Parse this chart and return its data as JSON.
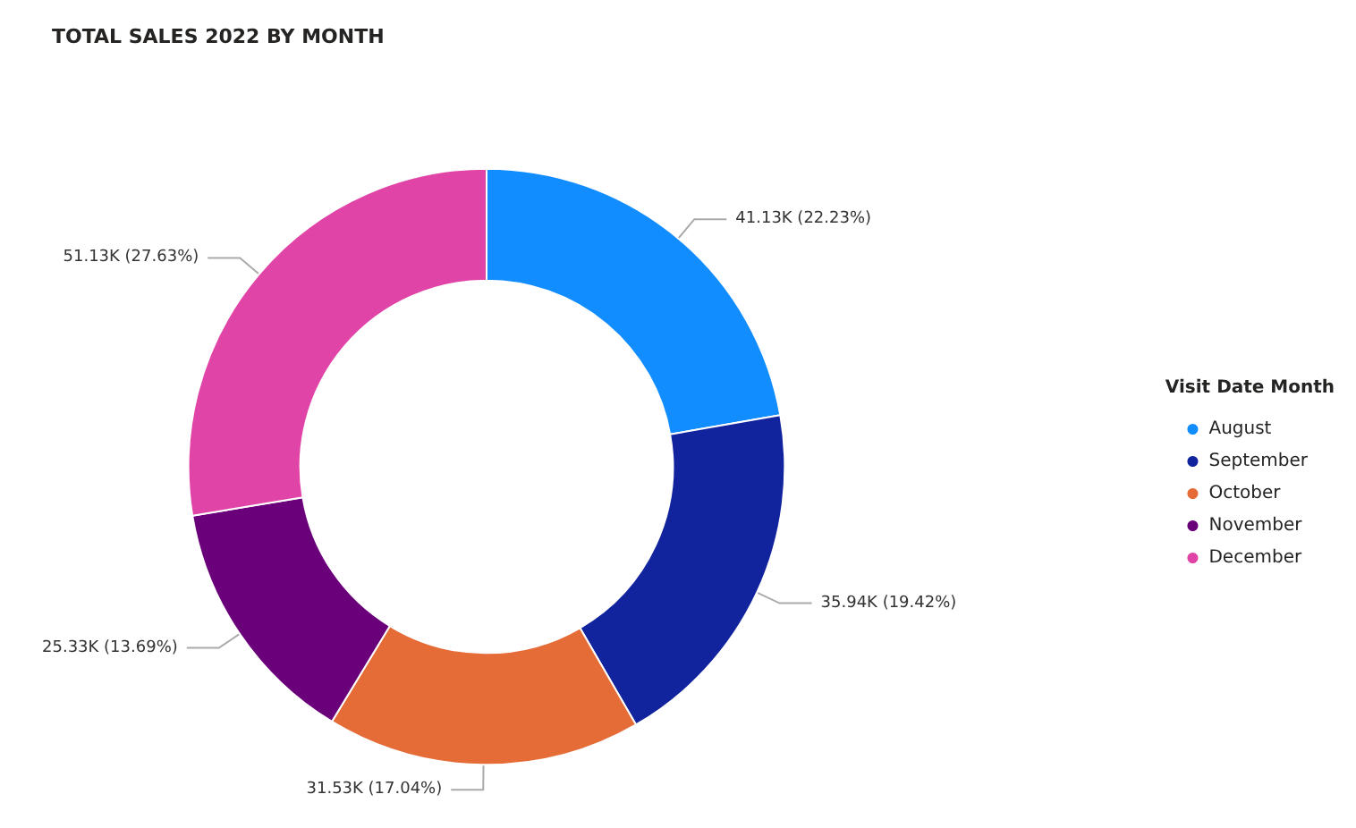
{
  "chart_data": {
    "type": "donut",
    "title": "TOTAL SALES 2022 BY MONTH",
    "legend_title": "Visit Date Month",
    "legend": "right",
    "categories": [
      "August",
      "September",
      "October",
      "November",
      "December"
    ],
    "values": [
      41130,
      35940,
      31530,
      25330,
      51130
    ],
    "value_labels": [
      "41.13K (22.23%)",
      "35.94K (19.42%)",
      "31.53K (17.04%)",
      "25.33K (13.69%)",
      "51.13K (27.63%)"
    ],
    "colors": [
      "#118dff",
      "#12239e",
      "#e66c37",
      "#6b007b",
      "#e044a7"
    ]
  }
}
